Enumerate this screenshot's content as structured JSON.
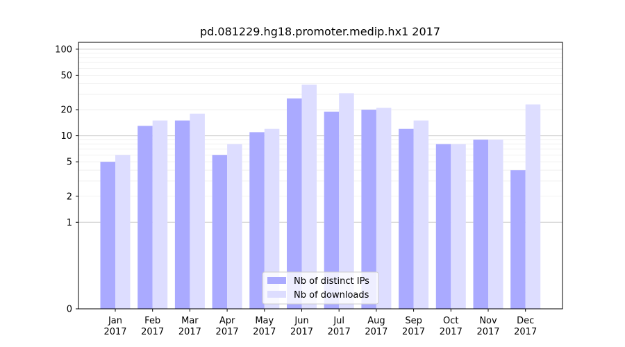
{
  "chart_data": {
    "type": "bar",
    "title": "pd.081229.hg18.promoter.medip.hx1 2017",
    "xlabel": "",
    "ylabel": "",
    "yscale": "symlog",
    "ylim": [
      0,
      120
    ],
    "yticks": [
      0,
      1,
      2,
      5,
      10,
      20,
      50,
      100
    ],
    "grid": true,
    "legend_position": "lower-center",
    "categories": [
      "Jan\n2017",
      "Feb\n2017",
      "Mar\n2017",
      "Apr\n2017",
      "May\n2017",
      "Jun\n2017",
      "Jul\n2017",
      "Aug\n2017",
      "Sep\n2017",
      "Oct\n2017",
      "Nov\n2017",
      "Dec\n2017"
    ],
    "series": [
      {
        "name": "Nb of distinct IPs",
        "color": "#aaaaff",
        "values": [
          5,
          13,
          15,
          6,
          11,
          27,
          19,
          20,
          12,
          8,
          9,
          4
        ]
      },
      {
        "name": "Nb of downloads",
        "color": "#ddddff",
        "values": [
          6,
          15,
          18,
          8,
          12,
          39,
          31,
          21,
          15,
          8,
          9,
          23
        ]
      }
    ]
  }
}
